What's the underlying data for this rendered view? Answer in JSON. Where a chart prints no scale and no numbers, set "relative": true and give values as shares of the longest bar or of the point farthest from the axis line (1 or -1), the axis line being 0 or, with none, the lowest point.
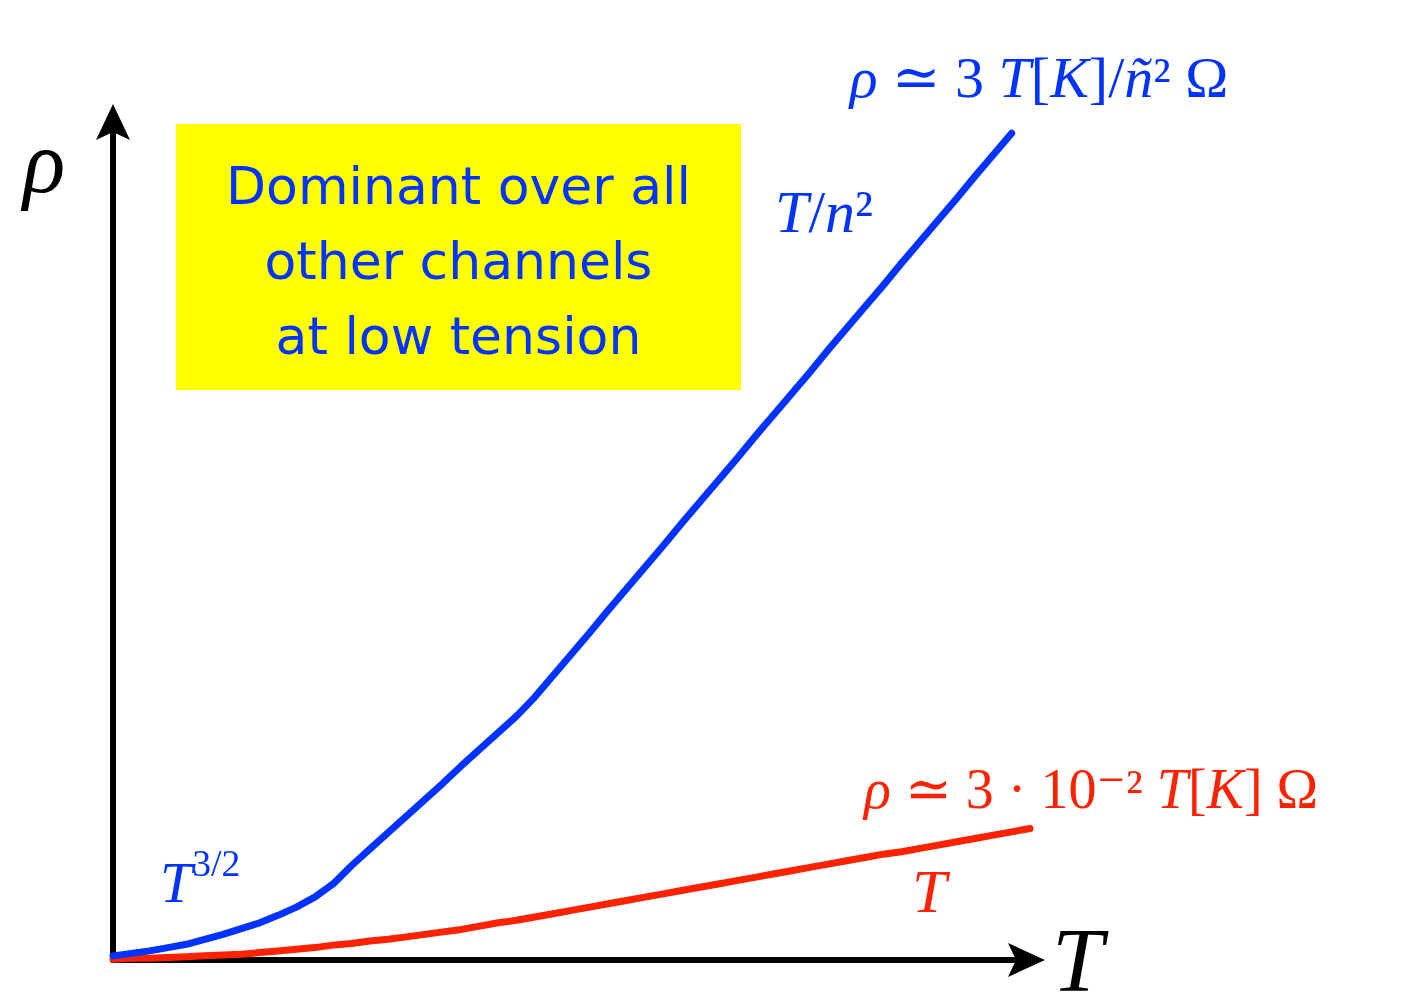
{
  "chart_data": {
    "type": "line",
    "relative": true,
    "xlabel": "T",
    "ylabel": "ρ",
    "categories": [
      null,
      null,
      null,
      null,
      null,
      null,
      null,
      null,
      null,
      null,
      null,
      null,
      null,
      null,
      null,
      null,
      null,
      null,
      null,
      null,
      null,
      null,
      null,
      null,
      null,
      null,
      null,
      null,
      null,
      null,
      null,
      null,
      null,
      null,
      null,
      null,
      null,
      null,
      null,
      null,
      null,
      null,
      null,
      null,
      null,
      null,
      null,
      null,
      null,
      null,
      null
    ],
    "series": [
      {
        "name": "ρ ≃ 3 T[K]/ñ² Ω",
        "color": "#0033ff",
        "values": [
          0.005,
          0.008,
          0.011,
          0.015,
          0.019,
          0.025,
          0.031,
          0.038,
          0.045,
          0.054,
          0.064,
          0.076,
          0.092,
          0.114,
          0.134,
          0.154,
          0.174,
          0.194,
          0.214,
          0.235,
          0.255,
          0.275,
          0.295,
          0.318,
          0.344,
          0.37,
          0.396,
          0.423,
          0.449,
          0.475,
          0.501,
          0.528,
          0.554,
          0.58,
          0.606,
          0.633,
          0.659,
          0.685,
          0.711,
          0.738,
          0.764,
          0.79,
          0.816,
          0.843,
          0.869,
          0.895,
          0.921,
          0.948,
          0.974,
          1,
          null
        ]
      },
      {
        "name": "ρ ≃ 3 · 10⁻² T[K] Ω",
        "color": "#ff2200",
        "values": [
          0.001,
          0.002,
          0.002,
          0.003,
          0.004,
          0.005,
          0.006,
          0.007,
          0.009,
          0.011,
          0.013,
          0.015,
          0.018,
          0.02,
          0.023,
          0.025,
          0.028,
          0.031,
          0.034,
          0.037,
          0.041,
          0.045,
          0.048,
          0.052,
          0.056,
          0.06,
          0.064,
          0.068,
          0.072,
          0.076,
          0.08,
          0.084,
          0.088,
          0.092,
          0.096,
          0.1,
          0.104,
          0.108,
          0.112,
          0.116,
          0.12,
          0.124,
          0.128,
          0.131,
          0.135,
          0.139,
          0.143,
          0.147,
          0.151,
          0.155,
          0.159
        ]
      }
    ],
    "annotations": [
      "Dominant over all\nother channels\nat low tension",
      "T/n²",
      "T$^{3/2}$",
      "T"
    ]
  }
}
